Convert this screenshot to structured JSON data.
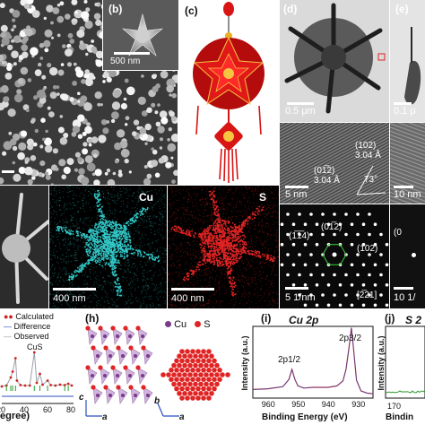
{
  "colors": {
    "cu": "#32c6c6",
    "s": "#e02424",
    "lantern": "#d81414",
    "fit_calc": "#d02020",
    "fit_diff": "#2a4fc0",
    "fit_obs": "#9ba0a8",
    "tick_green": "#2a9a2a"
  },
  "panels": {
    "b": {
      "label": "(b)",
      "scale": "500 nm"
    },
    "c": {
      "label": "(c)"
    },
    "d": {
      "label": "(d)",
      "scale": "0.5 μm"
    },
    "e": {
      "label": "(e)",
      "scale": "0.1 μ"
    },
    "hrtem": {
      "plane1": "(102)",
      "d1": "3.04 Å",
      "plane2": "(01̅2)",
      "d2": "3.04 Å",
      "angle": "73°",
      "scale": "5 nm"
    },
    "hrtem_right": {
      "scale": "10 nm"
    },
    "saed": {
      "spot1": "(1̅1̅4)",
      "spot2": "(01̅2)",
      "spot3": "(102)",
      "zone": "[2̅21]",
      "scale": "5 1/nm"
    },
    "saed_right": {
      "label": "(0",
      "scale": "10 1/"
    },
    "eds": {
      "cu": "Cu",
      "s": "S",
      "scale1": "400 nm",
      "scale2": "400 nm"
    },
    "xrd": {
      "legend": [
        "Calculated",
        "Difference",
        "Observed"
      ],
      "phase": "CuS",
      "ticks": [
        "20",
        "40",
        "60",
        "80"
      ],
      "xlabel": "egree)"
    },
    "h": {
      "label": "(h)",
      "legend_cu": "Cu",
      "legend_s": "S",
      "axis_c": "c",
      "axis_a1": "a",
      "axis_b": "b",
      "axis_a2": "a"
    },
    "i": {
      "label": "(i)",
      "title": "Cu 2p",
      "peak1": "2p1/2",
      "peak2": "2p3/2",
      "ylabel": "Intensity (a.u.)",
      "xlabel": "Binding Energy (eV)",
      "ticks": [
        "960",
        "950",
        "940",
        "930"
      ]
    },
    "j": {
      "label": "(j)",
      "title": "S 2",
      "ylabel": "Intensity (a.u.)",
      "xlabel": "Bindin",
      "ticks": [
        "170"
      ]
    }
  },
  "chart_data": [
    {
      "type": "line",
      "title": "Cu 2p",
      "xlabel": "Binding Energy (eV)",
      "ylabel": "Intensity (a.u.)",
      "xlim": [
        965,
        925
      ],
      "x": [
        965,
        960,
        955,
        953,
        952,
        951,
        950,
        948,
        945,
        942,
        940,
        937,
        935,
        934,
        933,
        932.2,
        931.5,
        930.5,
        929,
        927,
        925
      ],
      "y": [
        0.12,
        0.13,
        0.16,
        0.26,
        0.4,
        0.26,
        0.17,
        0.14,
        0.15,
        0.15,
        0.15,
        0.17,
        0.24,
        0.4,
        0.7,
        0.98,
        0.7,
        0.25,
        0.1,
        0.07,
        0.06
      ],
      "annotations": [
        "2p1/2",
        "2p3/2"
      ]
    },
    {
      "type": "line",
      "title": "",
      "xlabel": "",
      "ylabel": "",
      "series": [
        {
          "name": "Calculated",
          "x": [
            20,
            24,
            27.7,
            29.3,
            31.8,
            33,
            36,
            40,
            44,
            47.9,
            50,
            52.7,
            55,
            59.3,
            62,
            66,
            70,
            74,
            77,
            80
          ],
          "y": [
            0.22,
            0.24,
            0.42,
            0.55,
            0.85,
            0.35,
            0.25,
            0.24,
            0.24,
            0.98,
            0.3,
            0.5,
            0.26,
            0.35,
            0.25,
            0.24,
            0.26,
            0.25,
            0.28,
            0.24
          ]
        }
      ]
    }
  ]
}
